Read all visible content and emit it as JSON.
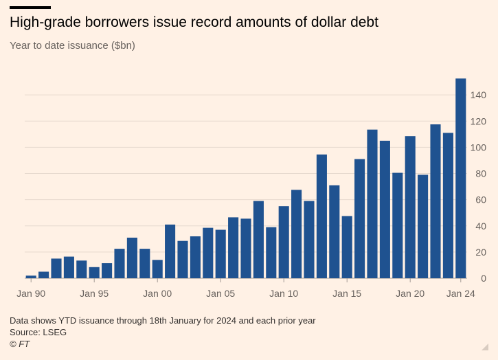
{
  "header": {
    "title": "High-grade borrowers issue record amounts of dollar debt",
    "subtitle": "Year to date issuance ($bn)"
  },
  "footer": {
    "note": "Data shows YTD issuance through 18th January for 2024 and each prior year",
    "source": "Source: LSEG",
    "copyright": "© FT"
  },
  "colors": {
    "bar": "#1F5290",
    "grid": "#E6D9CE",
    "axis": "#66605C",
    "background": "#FFF1E5"
  },
  "chart_data": {
    "type": "bar",
    "categories": [
      "1990",
      "1991",
      "1992",
      "1993",
      "1994",
      "1995",
      "1996",
      "1997",
      "1998",
      "1999",
      "2000",
      "2001",
      "2002",
      "2003",
      "2004",
      "2005",
      "2006",
      "2007",
      "2008",
      "2009",
      "2010",
      "2011",
      "2012",
      "2013",
      "2014",
      "2015",
      "2016",
      "2017",
      "2018",
      "2019",
      "2020",
      "2021",
      "2022",
      "2023",
      "2024"
    ],
    "values": [
      2,
      5,
      15,
      16.5,
      13.5,
      8.5,
      11.5,
      22.5,
      31,
      22.5,
      14,
      41,
      28.5,
      32,
      38.5,
      37,
      46.5,
      45.5,
      59,
      39,
      55,
      67.5,
      59,
      94.5,
      71,
      47.5,
      91,
      113.5,
      105,
      80.5,
      108.5,
      79,
      117.5,
      111,
      152.5
    ],
    "x_tick_labels": [
      {
        "category": "1990",
        "label": "Jan 90"
      },
      {
        "category": "1995",
        "label": "Jan 95"
      },
      {
        "category": "2000",
        "label": "Jan 00"
      },
      {
        "category": "2005",
        "label": "Jan 05"
      },
      {
        "category": "2010",
        "label": "Jan 10"
      },
      {
        "category": "2015",
        "label": "Jan 15"
      },
      {
        "category": "2020",
        "label": "Jan 20"
      },
      {
        "category": "2024",
        "label": "Jan 24"
      }
    ],
    "y_ticks": [
      0,
      20,
      40,
      60,
      80,
      100,
      120,
      140
    ],
    "ylim": [
      0,
      160
    ],
    "grid": true,
    "y_axis_position": "right"
  }
}
